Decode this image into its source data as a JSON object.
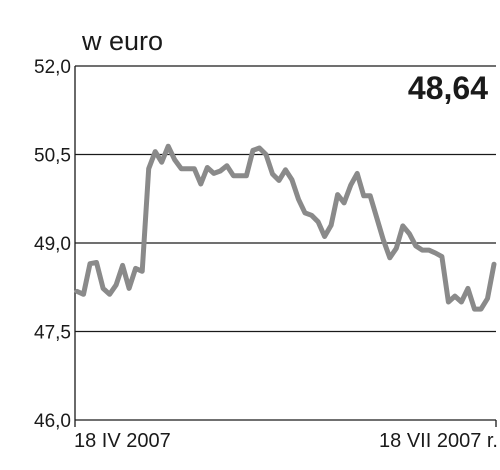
{
  "unit_label": "w euro",
  "last_value": "48,64",
  "chart_data": {
    "type": "line",
    "title": "",
    "xlabel": "",
    "ylabel": "w euro",
    "ylim": [
      46.0,
      52.0
    ],
    "y_ticks": [
      46.0,
      47.5,
      49.0,
      50.5,
      52.0
    ],
    "y_tick_labels": [
      "46,0",
      "47,5",
      "49,0",
      "50,5",
      "52,0"
    ],
    "x_labels": [
      {
        "label": "18 IV 2007",
        "date": "2007-04-18"
      },
      {
        "label": "18 VII 2007 r.",
        "date": "2007-07-18"
      }
    ],
    "grid": "horizontal",
    "line_color": "#8a8a8a",
    "series": [
      {
        "values": [
          48.18,
          48.13,
          48.65,
          48.67,
          48.23,
          48.13,
          48.29,
          48.62,
          48.23,
          48.57,
          48.52,
          50.26,
          50.55,
          50.37,
          50.64,
          50.41,
          50.26,
          50.26,
          50.26,
          50.0,
          50.28,
          50.18,
          50.22,
          50.31,
          50.14,
          50.14,
          50.14,
          50.57,
          50.61,
          50.5,
          50.17,
          50.06,
          50.24,
          50.07,
          49.74,
          49.51,
          49.47,
          49.36,
          49.11,
          49.3,
          49.82,
          49.68,
          49.98,
          50.18,
          49.8,
          49.8,
          49.43,
          49.06,
          48.75,
          48.91,
          49.29,
          49.16,
          48.95,
          48.88,
          48.88,
          48.83,
          48.77,
          48.0,
          48.1,
          48.0,
          48.23,
          47.88,
          47.88,
          48.06,
          48.64
        ]
      }
    ]
  }
}
